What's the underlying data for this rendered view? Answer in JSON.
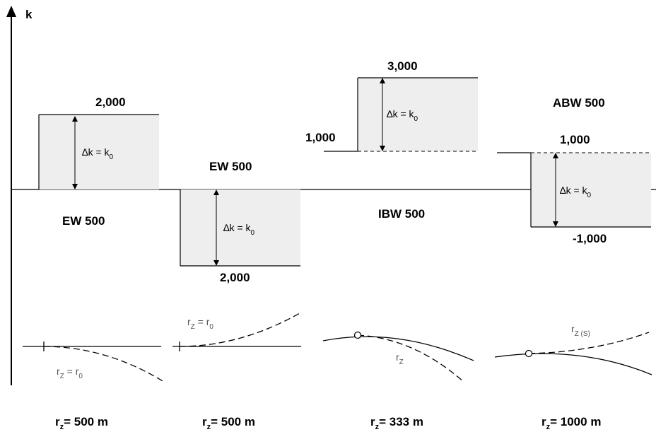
{
  "axis": {
    "label": "k"
  },
  "blocks": [
    {
      "name": "EW 500",
      "top_value": "2,000",
      "delta": {
        "main": "∆k = k",
        "sub": "0"
      },
      "radius_curve_label": {
        "main": "r",
        "sub": "Z",
        "rest": " = r",
        "sub2": "0"
      },
      "radius": {
        "main": "r",
        "sub": "z",
        "rest": "= 500 m"
      }
    },
    {
      "name": "EW 500",
      "bottom_value": "2,000",
      "delta": {
        "main": "∆k = k",
        "sub": "0"
      },
      "radius_curve_label": {
        "main": "r",
        "sub": "Z",
        "rest": " = r",
        "sub2": "0"
      },
      "radius": {
        "main": "r",
        "sub": "z",
        "rest": "= 500 m"
      }
    },
    {
      "name": "IBW 500",
      "base_value": "1,000",
      "top_value": "3,000",
      "delta": {
        "main": "∆k = k",
        "sub": "0"
      },
      "radius_curve_label": {
        "main": "r",
        "sub": "Z"
      },
      "radius": {
        "main": "r",
        "sub": "z",
        "rest": "= 333 m"
      }
    },
    {
      "name": "ABW 500",
      "base_value": "1,000",
      "bottom_value": "-1,000",
      "delta": {
        "main": "∆k = k",
        "sub": "0"
      },
      "radius_curve_label": {
        "main": "r",
        "sub": "Z (S)"
      },
      "radius": {
        "main": "r",
        "sub": "z",
        "rest": "= 1000 m"
      }
    }
  ]
}
